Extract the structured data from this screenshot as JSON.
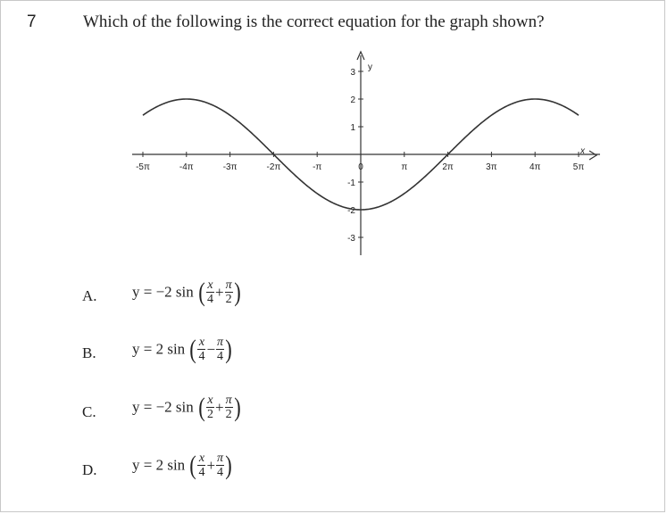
{
  "question": {
    "number": "7",
    "text": "Which of the following is the correct equation for the graph shown?"
  },
  "chart_data": {
    "type": "line",
    "function": "y = 2 sin(x/4 + 3π/2)",
    "x_tick_labels": [
      "-5π",
      "-4π",
      "-3π",
      "-2π",
      "-π",
      "0",
      "π",
      "2π",
      "3π",
      "4π",
      "5π"
    ],
    "x_tick_values": [
      -5,
      -4,
      -3,
      -2,
      -1,
      0,
      1,
      2,
      3,
      4,
      5
    ],
    "y_tick_labels": [
      "3",
      "2",
      "1",
      "-1",
      "-2",
      "-3"
    ],
    "y_tick_values": [
      3,
      2,
      1,
      -1,
      -2,
      -3
    ],
    "xlabel": "x",
    "ylabel": "y",
    "xlim_pi": [
      -5,
      5
    ],
    "ylim": [
      -3,
      3
    ],
    "grid": false
  },
  "choices": [
    {
      "letter": "A.",
      "lhs": "y = −2 sin",
      "num1": "x",
      "den1": "4",
      "op": "+",
      "num2": "π",
      "den2": "2"
    },
    {
      "letter": "B.",
      "lhs": "y = 2 sin",
      "num1": "x",
      "den1": "4",
      "op": "−",
      "num2": "π",
      "den2": "4"
    },
    {
      "letter": "C.",
      "lhs": "y = −2 sin",
      "num1": "x",
      "den1": "2",
      "op": "+",
      "num2": "π",
      "den2": "2"
    },
    {
      "letter": "D.",
      "lhs": "y = 2 sin",
      "num1": "x",
      "den1": "4",
      "op": "+",
      "num2": "π",
      "den2": "4"
    }
  ]
}
